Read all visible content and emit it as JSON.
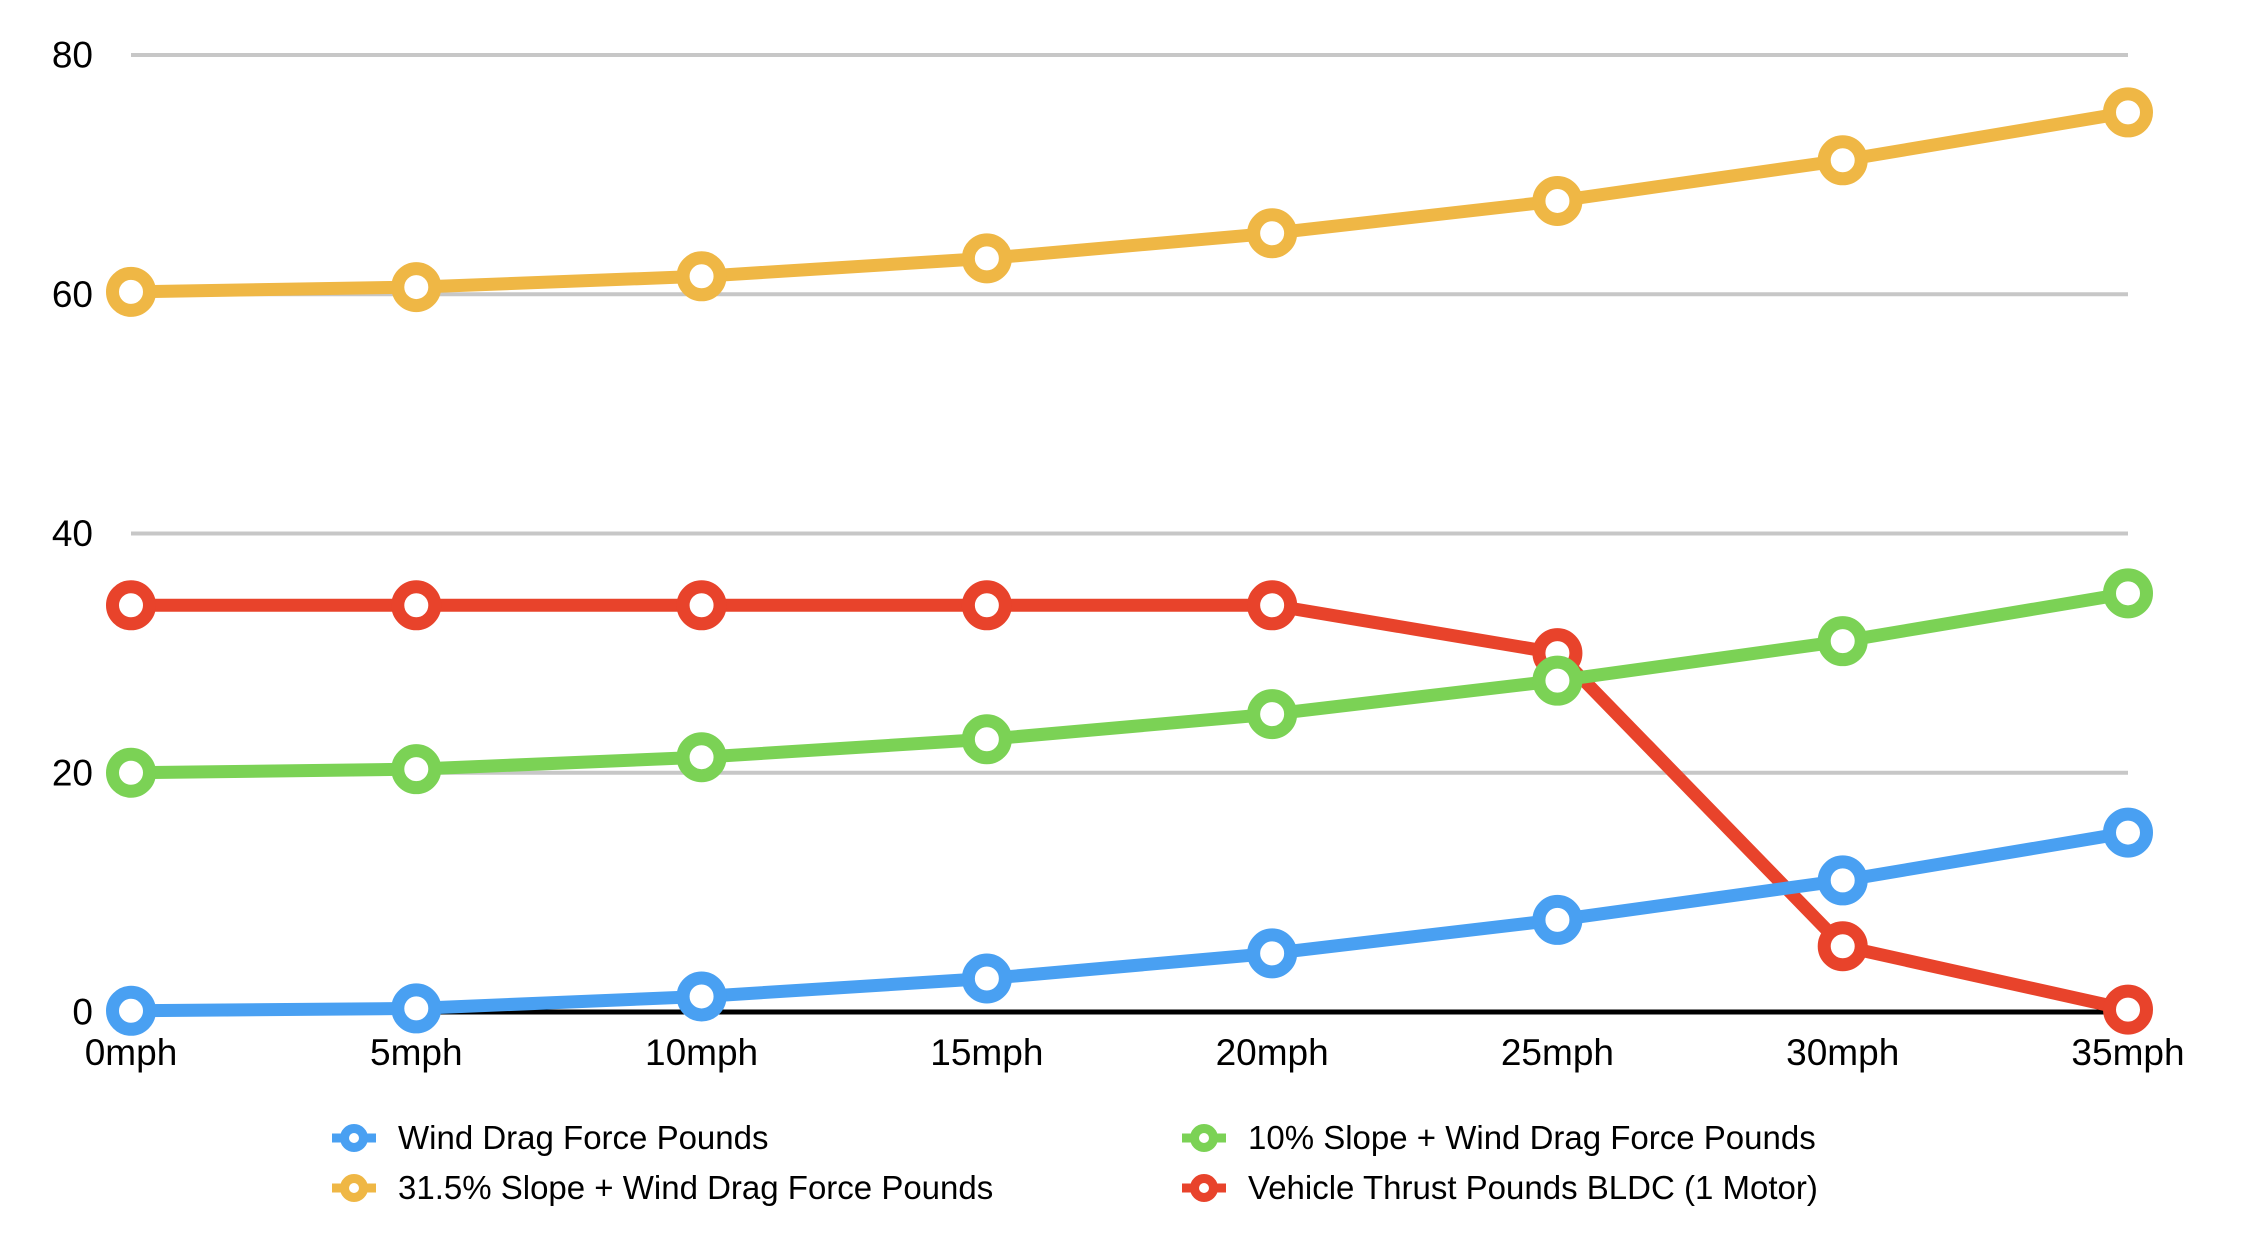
{
  "chart_data": {
    "type": "line",
    "title": "",
    "xlabel": "",
    "ylabel": "",
    "categories": [
      "0mph",
      "5mph",
      "10mph",
      "15mph",
      "20mph",
      "25mph",
      "30mph",
      "35mph"
    ],
    "series": [
      {
        "name": "Wind Drag Force Pounds",
        "color": "#49A0F2",
        "values": [
          0.1,
          0.3,
          1.3,
          2.8,
          4.9,
          7.7,
          11.0,
          15.0
        ]
      },
      {
        "name": "31.5% Slope + Wind Drag Force Pounds",
        "color": "#EFB745",
        "values": [
          60.2,
          60.6,
          61.5,
          63.0,
          65.1,
          67.8,
          71.2,
          75.2
        ]
      },
      {
        "name": "10% Slope + Wind Drag Force Pounds",
        "color": "#7BD255",
        "values": [
          20.0,
          20.3,
          21.3,
          22.8,
          24.9,
          27.7,
          31.0,
          35.0
        ]
      },
      {
        "name": "Vehicle Thrust Pounds BLDC (1 Motor)",
        "color": "#E8432B",
        "values": [
          34.0,
          34.0,
          34.0,
          34.0,
          34.0,
          30.0,
          5.5,
          0.2
        ]
      }
    ],
    "yticks": [
      0,
      20,
      40,
      60,
      80
    ],
    "ylim": [
      0,
      80
    ],
    "grid": "horizontal",
    "grid_color": "#C7C7C7",
    "axis_color": "#000000",
    "tick_label_color": "#000000",
    "legend_position": "bottom",
    "legend_columns": [
      [
        0,
        1
      ],
      [
        2,
        3
      ]
    ],
    "draw_order": [
      3,
      0,
      1,
      2
    ]
  }
}
